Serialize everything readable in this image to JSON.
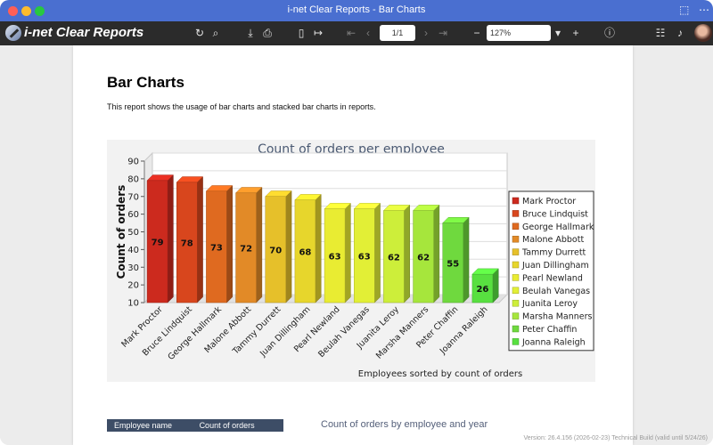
{
  "window": {
    "title": "i-net Clear Reports - Bar Charts"
  },
  "toolbar": {
    "brand": "i-net Clear Reports",
    "page_value": "1/1",
    "zoom_value": "127%"
  },
  "report": {
    "title": "Bar Charts",
    "description": "This report shows the usage of bar charts and stacked bar charts in reports.",
    "table_header": [
      "Employee name",
      "Count of orders"
    ],
    "second_chart_title": "Count of orders by employee and year",
    "version": "Version: 26.4.156 (2026-02-23) Technical Build (valid until 5/24/26)"
  },
  "chart_data": {
    "type": "bar",
    "title": "Count of orders per employee",
    "xlabel": "Employees sorted by count of orders",
    "ylabel": "Count of orders",
    "ylim": [
      10,
      90
    ],
    "yticks": [
      10,
      20,
      30,
      40,
      50,
      60,
      70,
      80,
      90
    ],
    "categories": [
      "Mark Proctor",
      "Bruce Lindquist",
      "George Hallmark",
      "Malone Abbott",
      "Tammy Durrett",
      "Juan Dillingham",
      "Pearl Newland",
      "Beulah Vanegas",
      "Juanita Leroy",
      "Marsha Manners",
      "Peter Chaffin",
      "Joanna Raleigh"
    ],
    "values": [
      79,
      78,
      73,
      72,
      70,
      68,
      63,
      63,
      62,
      62,
      55,
      26
    ],
    "colors": [
      "#cc2a1e",
      "#d8461d",
      "#df6a20",
      "#e28a27",
      "#e6c02a",
      "#e7d62c",
      "#e9ec32",
      "#e2ef36",
      "#cdee3a",
      "#a6e63c",
      "#6fd93e",
      "#58e040"
    ],
    "legend_position": "right",
    "grid": true
  }
}
